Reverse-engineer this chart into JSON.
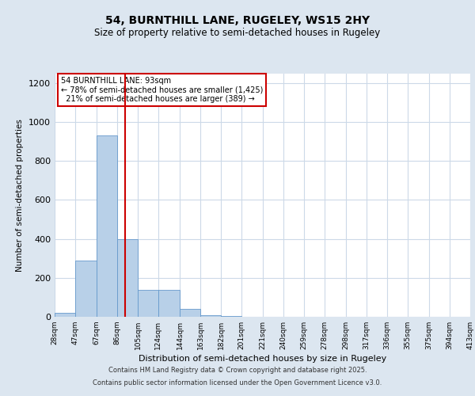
{
  "title_line1": "54, BURNTHILL LANE, RUGELEY, WS15 2HY",
  "title_line2": "Size of property relative to semi-detached houses in Rugeley",
  "xlabel": "Distribution of semi-detached houses by size in Rugeley",
  "ylabel": "Number of semi-detached properties",
  "bar_left_edges": [
    28,
    47,
    67,
    86,
    105,
    124,
    144,
    163,
    182,
    201,
    221,
    240,
    259,
    278,
    298,
    317,
    336,
    355,
    375,
    394
  ],
  "bar_widths": [
    19,
    20,
    19,
    19,
    19,
    20,
    19,
    19,
    19,
    20,
    19,
    19,
    19,
    20,
    19,
    19,
    19,
    20,
    19,
    19
  ],
  "bar_heights": [
    20,
    290,
    930,
    400,
    140,
    140,
    40,
    10,
    5,
    2,
    1,
    1,
    0,
    0,
    0,
    0,
    0,
    0,
    0,
    0
  ],
  "bar_color": "#b8d0e8",
  "bar_edge_color": "#6699cc",
  "tick_labels": [
    "28sqm",
    "47sqm",
    "67sqm",
    "86sqm",
    "105sqm",
    "124sqm",
    "144sqm",
    "163sqm",
    "182sqm",
    "201sqm",
    "221sqm",
    "240sqm",
    "259sqm",
    "278sqm",
    "298sqm",
    "317sqm",
    "336sqm",
    "355sqm",
    "375sqm",
    "394sqm",
    "413sqm"
  ],
  "tick_positions": [
    28,
    47,
    67,
    86,
    105,
    124,
    144,
    163,
    182,
    201,
    221,
    240,
    259,
    278,
    298,
    317,
    336,
    355,
    375,
    394,
    413
  ],
  "vline_x": 93,
  "vline_color": "#cc0000",
  "annotation_line1": "54 BURNTHILL LANE: 93sqm",
  "annotation_line2": "← 78% of semi-detached houses are smaller (1,425)",
  "annotation_line3": "  21% of semi-detached houses are larger (389) →",
  "ylim": [
    0,
    1250
  ],
  "yticks": [
    0,
    200,
    400,
    600,
    800,
    1000,
    1200
  ],
  "background_color": "#dce6f0",
  "plot_bg_color": "#ffffff",
  "footer_line1": "Contains HM Land Registry data © Crown copyright and database right 2025.",
  "footer_line2": "Contains public sector information licensed under the Open Government Licence v3.0.",
  "grid_color": "#ccd9e8",
  "box_edge_color": "#cc0000",
  "box_face_color": "#ffffff"
}
